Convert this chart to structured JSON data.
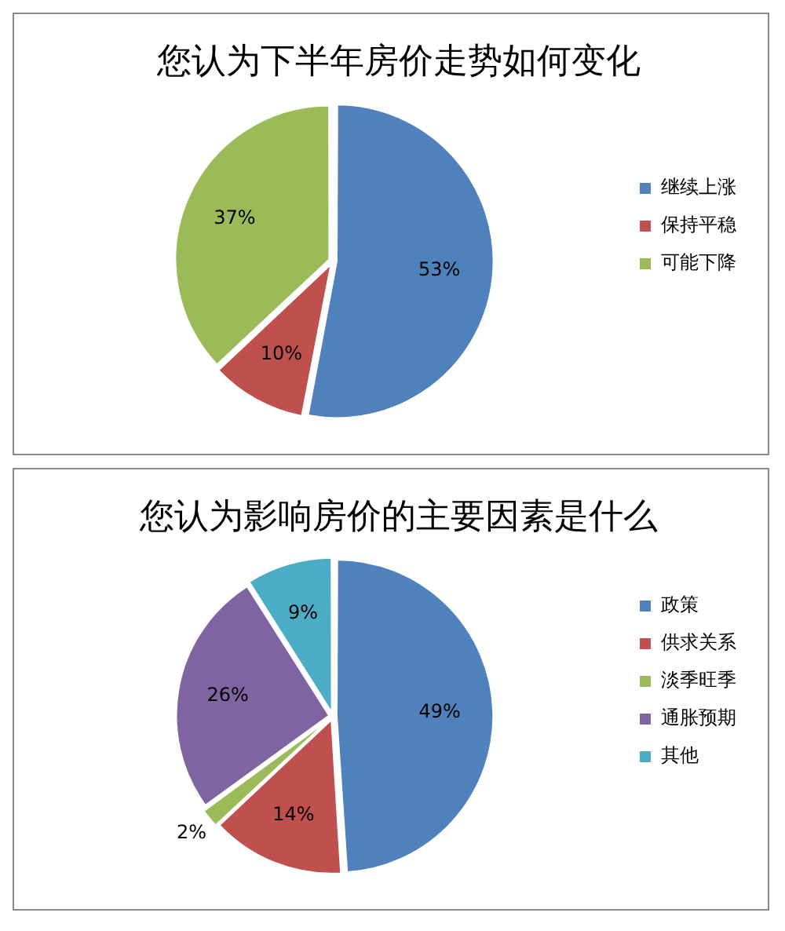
{
  "chart_data": [
    {
      "type": "pie",
      "title": "您认为下半年房价走势如何变化",
      "categories": [
        "继续上涨",
        "保持平稳",
        "可能下降"
      ],
      "values": [
        53,
        10,
        37
      ],
      "colors": [
        "#4f81bd",
        "#c0504d",
        "#9bbb59"
      ],
      "value_labels": [
        "53%",
        "10%",
        "37%"
      ],
      "legend": "right"
    },
    {
      "type": "pie",
      "title": "您认为影响房价的主要因素是什么",
      "categories": [
        "政策",
        "供求关系",
        "淡季旺季",
        "通胀预期",
        "其他"
      ],
      "values": [
        49,
        14,
        2,
        26,
        9
      ],
      "colors": [
        "#4f81bd",
        "#c0504d",
        "#9bbb59",
        "#8064a2",
        "#4bacc6"
      ],
      "value_labels": [
        "49%",
        "14%",
        "2%",
        "26%",
        "9%"
      ],
      "legend": "right"
    }
  ]
}
